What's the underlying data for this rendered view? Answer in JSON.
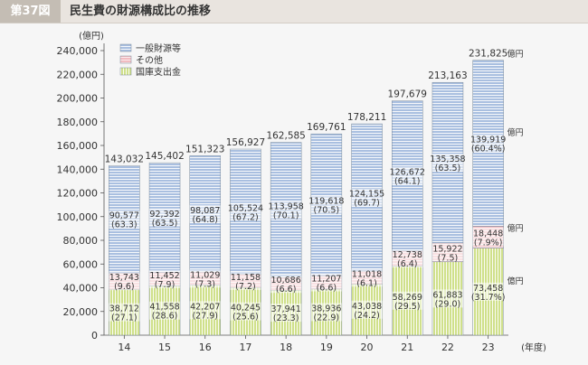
{
  "figure": {
    "badge": "第37図",
    "title": "民生費の財源構成比の推移"
  },
  "colors": {
    "header_bg": "#e9e4df",
    "badge_bg": "#c4bdb4",
    "general_fund": "#a9bfe0",
    "other": "#f2bcc1",
    "national_treasury": "#cfe08a"
  },
  "chart_data": {
    "type": "bar",
    "stacked": true,
    "title": "",
    "ylabel": "(億円)",
    "xlabel": "(年度)",
    "ylim": [
      0,
      240000
    ],
    "yticks": [
      0,
      20000,
      40000,
      60000,
      80000,
      100000,
      120000,
      140000,
      160000,
      180000,
      200000,
      220000,
      240000
    ],
    "ytick_labels": [
      "0",
      "20,000",
      "40,000",
      "60,000",
      "80,000",
      "100,000",
      "120,000",
      "140,000",
      "160,000",
      "180,000",
      "200,000",
      "220,000",
      "240,000"
    ],
    "categories": [
      "14",
      "15",
      "16",
      "17",
      "18",
      "19",
      "20",
      "21",
      "22",
      "23"
    ],
    "legend_position": "top-left",
    "series": [
      {
        "name": "国庫支出金",
        "values": [
          38712,
          41558,
          42207,
          40245,
          37941,
          38936,
          43038,
          58269,
          61883,
          73458
        ],
        "value_labels": [
          "38,712",
          "41,558",
          "42,207",
          "40,245",
          "37,941",
          "38,936",
          "43,038",
          "58,269",
          "61,883",
          "73,458"
        ],
        "share_labels": [
          "(27.1)",
          "(28.6)",
          "(27.9)",
          "(25.6)",
          "(23.3)",
          "(22.9)",
          "(24.2)",
          "(29.5)",
          "(29.0)",
          "(31.7%)"
        ]
      },
      {
        "name": "その他",
        "values": [
          13743,
          11452,
          11029,
          11158,
          10686,
          11207,
          11018,
          12738,
          15922,
          18448
        ],
        "value_labels": [
          "13,743",
          "11,452",
          "11,029",
          "11,158",
          "10,686",
          "11,207",
          "11,018",
          "12,738",
          "15,922",
          "18,448"
        ],
        "share_labels": [
          "(9.6)",
          "(7.9)",
          "(7.3)",
          "(7.2)",
          "(6.6)",
          "(6.6)",
          "(6.1)",
          "(6.4)",
          "(7.5)",
          "(7.9%)"
        ]
      },
      {
        "name": "一般財源等",
        "values": [
          90577,
          92392,
          98087,
          105524,
          113958,
          119618,
          124155,
          126672,
          135358,
          139919
        ],
        "value_labels": [
          "90,577",
          "92,392",
          "98,087",
          "105,524",
          "113,958",
          "119,618",
          "124,155",
          "126,672",
          "135,358",
          "139,919"
        ],
        "share_labels": [
          "(63.3)",
          "(63.5)",
          "(64.8)",
          "(67.2)",
          "(70.1)",
          "(70.5)",
          "(69.7)",
          "(64.1)",
          "(63.5)",
          "(60.4%)"
        ]
      }
    ],
    "totals": [
      143032,
      145402,
      151323,
      156927,
      162585,
      169761,
      178211,
      197679,
      213163,
      231825
    ],
    "total_labels": [
      "143,032",
      "145,402",
      "151,323",
      "156,927",
      "162,585",
      "169,761",
      "178,211",
      "197,679",
      "213,163",
      "231,825"
    ],
    "unit_suffix": "億円"
  }
}
